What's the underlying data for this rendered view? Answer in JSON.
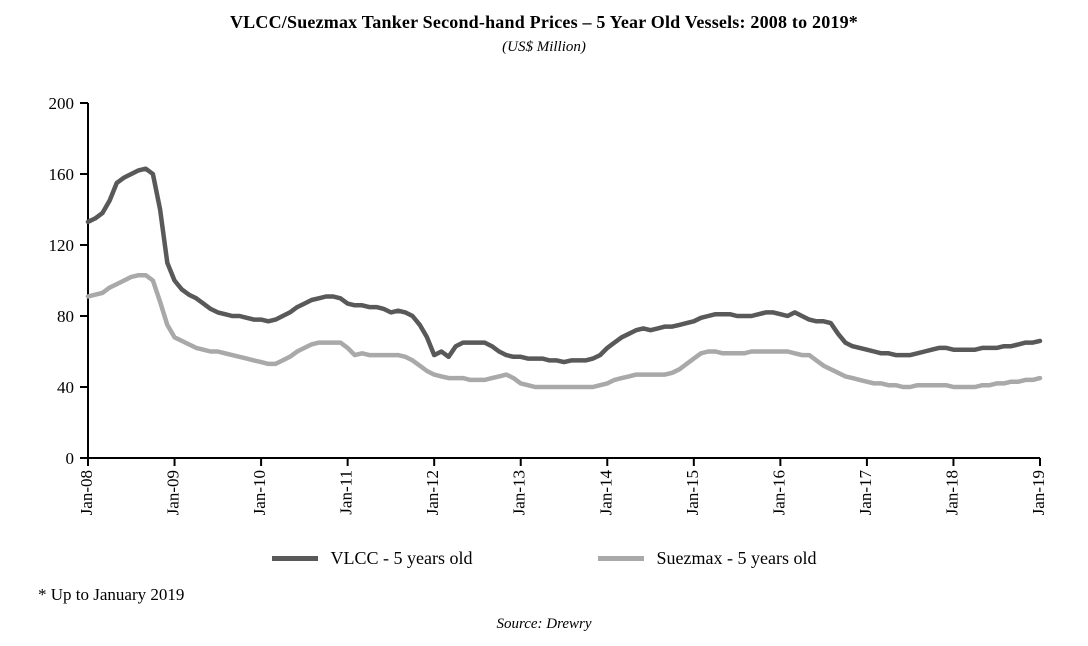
{
  "title": "VLCC/Suezmax Tanker Second-hand Prices – 5 Year Old Vessels: 2008 to 2019*",
  "subtitle": "(US$ Million)",
  "footnote": "* Up to January 2019",
  "source": "Source: Drewry",
  "colors": {
    "vlcc": "#595959",
    "suezmax": "#a9a9a9",
    "axis": "#000000"
  },
  "legend": [
    {
      "label": "VLCC - 5 years old",
      "color": "#595959"
    },
    {
      "label": "Suezmax - 5 years old",
      "color": "#a9a9a9"
    }
  ],
  "chart_data": {
    "type": "line",
    "title": "VLCC/Suezmax Tanker Second-hand Prices – 5 Year Old Vessels: 2008 to 2019*",
    "subtitle": "(US$ Million)",
    "xlabel": "",
    "ylabel": "US$ Million",
    "ylim": [
      0,
      200
    ],
    "y_ticks": [
      0,
      40,
      80,
      120,
      160,
      200
    ],
    "grid": false,
    "legend_position": "bottom",
    "x_unit": "monthly, Jan-2008 to Jan-2019",
    "x_tick_labels": [
      "Jan-08",
      "Jan-09",
      "Jan-10",
      "Jan-11",
      "Jan-12",
      "Jan-13",
      "Jan-14",
      "Jan-15",
      "Jan-16",
      "Jan-17",
      "Jan-18",
      "Jan-19"
    ],
    "x_tick_every": 12,
    "series": [
      {
        "name": "VLCC - 5 years old",
        "color": "#595959",
        "values": [
          133,
          135,
          138,
          145,
          155,
          158,
          160,
          162,
          163,
          160,
          140,
          110,
          100,
          95,
          92,
          90,
          87,
          84,
          82,
          81,
          80,
          80,
          79,
          78,
          78,
          77,
          78,
          80,
          82,
          85,
          87,
          89,
          90,
          91,
          91,
          90,
          87,
          86,
          86,
          85,
          85,
          84,
          82,
          83,
          82,
          80,
          75,
          68,
          58,
          60,
          57,
          63,
          65,
          65,
          65,
          65,
          63,
          60,
          58,
          57,
          57,
          56,
          56,
          56,
          55,
          55,
          54,
          55,
          55,
          55,
          56,
          58,
          62,
          65,
          68,
          70,
          72,
          73,
          72,
          73,
          74,
          74,
          75,
          76,
          77,
          79,
          80,
          81,
          81,
          81,
          80,
          80,
          80,
          81,
          82,
          82,
          81,
          80,
          82,
          80,
          78,
          77,
          77,
          76,
          70,
          65,
          63,
          62,
          61,
          60,
          59,
          59,
          58,
          58,
          58,
          59,
          60,
          61,
          62,
          62,
          61,
          61,
          61,
          61,
          62,
          62,
          62,
          63,
          63,
          64,
          65,
          65,
          66
        ]
      },
      {
        "name": "Suezmax - 5 years old",
        "color": "#a9a9a9",
        "values": [
          91,
          92,
          93,
          96,
          98,
          100,
          102,
          103,
          103,
          100,
          88,
          75,
          68,
          66,
          64,
          62,
          61,
          60,
          60,
          59,
          58,
          57,
          56,
          55,
          54,
          53,
          53,
          55,
          57,
          60,
          62,
          64,
          65,
          65,
          65,
          65,
          62,
          58,
          59,
          58,
          58,
          58,
          58,
          58,
          57,
          55,
          52,
          49,
          47,
          46,
          45,
          45,
          45,
          44,
          44,
          44,
          45,
          46,
          47,
          45,
          42,
          41,
          40,
          40,
          40,
          40,
          40,
          40,
          40,
          40,
          40,
          41,
          42,
          44,
          45,
          46,
          47,
          47,
          47,
          47,
          47,
          48,
          50,
          53,
          56,
          59,
          60,
          60,
          59,
          59,
          59,
          59,
          60,
          60,
          60,
          60,
          60,
          60,
          59,
          58,
          58,
          55,
          52,
          50,
          48,
          46,
          45,
          44,
          43,
          42,
          42,
          41,
          41,
          40,
          40,
          41,
          41,
          41,
          41,
          41,
          40,
          40,
          40,
          40,
          41,
          41,
          42,
          42,
          43,
          43,
          44,
          44,
          45
        ]
      }
    ]
  }
}
